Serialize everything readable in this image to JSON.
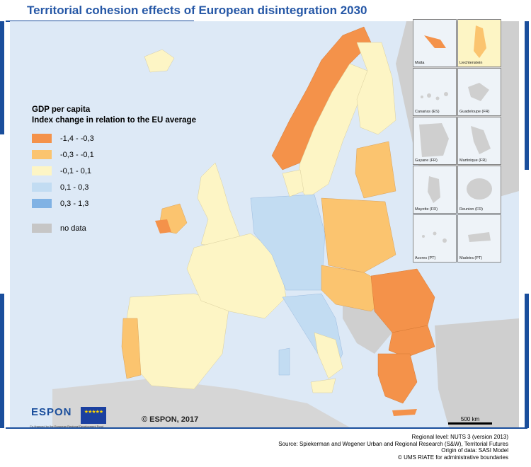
{
  "title": "Territorial cohesion effects of European disintegration 2030",
  "legend": {
    "title_line1": "GDP per capita",
    "title_line2": "Index change in relation to the EU average",
    "classes": [
      {
        "label": "-1,4 - -0,3",
        "color": "#f4924a"
      },
      {
        "label": "-0,3 - -0,1",
        "color": "#fbc46f"
      },
      {
        "label": "-0,1 -  0,1",
        "color": "#fdf5c5"
      },
      {
        "label": "0,1 -  0,3",
        "color": "#c2dcf2"
      },
      {
        "label": "0,3 -  1,3",
        "color": "#80b2e4"
      },
      {
        "label": "no data",
        "color": "#c6c6c6"
      }
    ]
  },
  "insets": [
    {
      "label": "Malta"
    },
    {
      "label": "Liechtenstein"
    },
    {
      "label": "Canarias (ES)"
    },
    {
      "label": "Guadeloupe (FR)"
    },
    {
      "label": "Guyane (FR)"
    },
    {
      "label": "Martinique (FR)"
    },
    {
      "label": "Mayotte (FR)"
    },
    {
      "label": "Reunion (FR)"
    },
    {
      "label": "Acores (PT)"
    },
    {
      "label": "Madeira (PT)"
    }
  ],
  "logo": {
    "text": "ESPON",
    "cofunded": "Co-financed by the European Regional Development Fund",
    "flag_stars": "★★★★★"
  },
  "copyright": "© ESPON, 2017",
  "scale_label": "500 km",
  "footer": {
    "line1": "Regional level: NUTS 3 (version 2013)",
    "line2": "Source: Spiekerman and Wegener Urban and Regional Research (S&W), Territorial Futures",
    "line3": "Origin of data: SASI Model",
    "line4": "© UMS RIATE for administrative boundaries"
  },
  "colors": {
    "sea": "#dde9f6",
    "frame": "#1a4e9c",
    "title": "#2557a6"
  }
}
